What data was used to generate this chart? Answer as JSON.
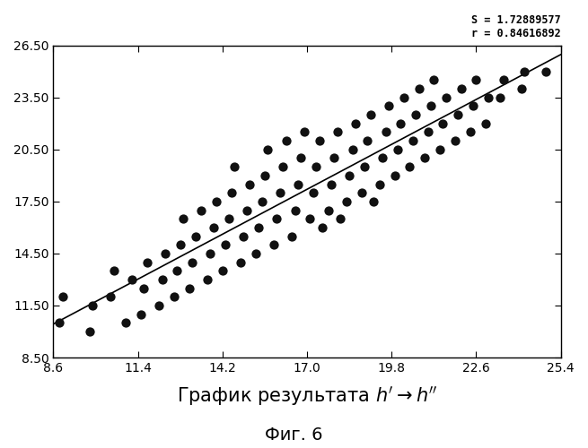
{
  "title_xlabel": "График результата $h' \\rightarrow h''$",
  "title_fig": "Фиг. 6",
  "annotation_line1": "S = 1.72889577",
  "annotation_line2": "r = 0.84616892",
  "xlim": [
    8.6,
    25.4
  ],
  "ylim": [
    8.5,
    26.5
  ],
  "xticks": [
    8.6,
    11.4,
    14.2,
    17.0,
    19.8,
    22.6,
    25.4
  ],
  "yticks": [
    8.5,
    11.5,
    14.5,
    17.5,
    20.5,
    23.5,
    26.5
  ],
  "dot_color": "#111111",
  "dot_size": 55,
  "line_color": "#000000",
  "background_color": "#ffffff",
  "scatter_x": [
    8.8,
    8.9,
    9.8,
    9.9,
    10.5,
    10.6,
    11.0,
    11.2,
    11.5,
    11.6,
    11.7,
    12.1,
    12.2,
    12.3,
    12.6,
    12.7,
    12.8,
    12.9,
    13.1,
    13.2,
    13.3,
    13.5,
    13.7,
    13.8,
    13.9,
    14.0,
    14.2,
    14.3,
    14.4,
    14.5,
    14.6,
    14.8,
    14.9,
    15.0,
    15.1,
    15.3,
    15.4,
    15.5,
    15.6,
    15.7,
    15.9,
    16.0,
    16.1,
    16.2,
    16.3,
    16.5,
    16.6,
    16.7,
    16.8,
    16.9,
    17.1,
    17.2,
    17.3,
    17.4,
    17.5,
    17.7,
    17.8,
    17.9,
    18.0,
    18.1,
    18.3,
    18.4,
    18.5,
    18.6,
    18.8,
    18.9,
    19.0,
    19.1,
    19.2,
    19.4,
    19.5,
    19.6,
    19.7,
    19.9,
    20.0,
    20.1,
    20.2,
    20.4,
    20.5,
    20.6,
    20.7,
    20.9,
    21.0,
    21.1,
    21.2,
    21.4,
    21.5,
    21.6,
    21.9,
    22.0,
    22.1,
    22.4,
    22.5,
    22.6,
    22.9,
    23.0,
    23.4,
    23.5,
    24.1,
    24.2,
    24.9
  ],
  "scatter_y": [
    10.5,
    12.0,
    10.0,
    11.5,
    12.0,
    13.5,
    10.5,
    13.0,
    11.0,
    12.5,
    14.0,
    11.5,
    13.0,
    14.5,
    12.0,
    13.5,
    15.0,
    16.5,
    12.5,
    14.0,
    15.5,
    17.0,
    13.0,
    14.5,
    16.0,
    17.5,
    13.5,
    15.0,
    16.5,
    18.0,
    19.5,
    14.0,
    15.5,
    17.0,
    18.5,
    14.5,
    16.0,
    17.5,
    19.0,
    20.5,
    15.0,
    16.5,
    18.0,
    19.5,
    21.0,
    15.5,
    17.0,
    18.5,
    20.0,
    21.5,
    16.5,
    18.0,
    19.5,
    21.0,
    16.0,
    17.0,
    18.5,
    20.0,
    21.5,
    16.5,
    17.5,
    19.0,
    20.5,
    22.0,
    18.0,
    19.5,
    21.0,
    22.5,
    17.5,
    18.5,
    20.0,
    21.5,
    23.0,
    19.0,
    20.5,
    22.0,
    23.5,
    19.5,
    21.0,
    22.5,
    24.0,
    20.0,
    21.5,
    23.0,
    24.5,
    20.5,
    22.0,
    23.5,
    21.0,
    22.5,
    24.0,
    21.5,
    23.0,
    24.5,
    22.0,
    23.5,
    23.5,
    24.5,
    24.0,
    25.0,
    25.0
  ]
}
